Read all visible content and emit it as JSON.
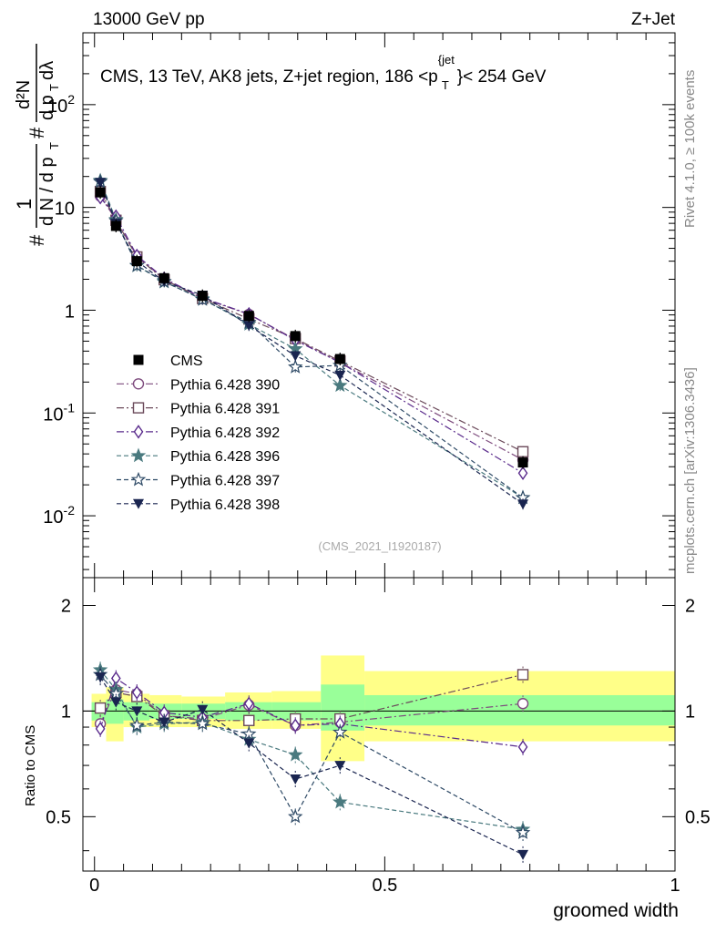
{
  "header": {
    "energy_label": "13000 GeV pp",
    "process_label": "Z+Jet"
  },
  "side_labels": {
    "rivet": "Rivet 4.1.0, ≥ 100k events",
    "mcplots": "mcplots.cern.ch [arXiv:1306.3436]"
  },
  "main_plot": {
    "title_main": "CMS, 13 TeV, AK8 jets, Z+jet region, 186 <p",
    "title_sup": "{jet",
    "title_sub": "T",
    "title_end": "}< 254 GeV",
    "watermark": "(CMS_2021_I1920187)",
    "y_ticks": [
      {
        "base": "10",
        "exp": "-2",
        "value": 0.01
      },
      {
        "base": "10",
        "exp": "-1",
        "value": 0.1
      },
      {
        "base": "1",
        "exp": "",
        "value": 1
      },
      {
        "base": "10",
        "exp": "",
        "value": 10
      },
      {
        "base": "10",
        "exp": "2",
        "value": 100
      }
    ],
    "ylabel": {
      "hash1": "#",
      "num1": "1",
      "den1": "d N / d p",
      "den1_sub": "T",
      "hash2": "#",
      "num2": "d²N",
      "den2": "d p",
      "den2_sub": "T",
      "den2_end": " dλ"
    }
  },
  "ratio_plot": {
    "ylabel": "Ratio to CMS",
    "left_ticks": [
      "0.5",
      "1",
      "2"
    ],
    "right_ticks": [
      "0.5",
      "1",
      "2"
    ],
    "xlabel": "groomed width",
    "x_ticks": [
      "0",
      "0.5",
      "1"
    ]
  },
  "legend": [
    {
      "label": "CMS",
      "color": "#000000",
      "marker": "square-filled"
    },
    {
      "label": "Pythia 6.428 390",
      "color": "#7d4a7d",
      "marker": "circle-open"
    },
    {
      "label": "Pythia 6.428 391",
      "color": "#6b4a5a",
      "marker": "square-open"
    },
    {
      "label": "Pythia 6.428 392",
      "color": "#5a2b8c",
      "marker": "diamond-open"
    },
    {
      "label": "Pythia 6.428 396",
      "color": "#4a7a7f",
      "marker": "star-filled"
    },
    {
      "label": "Pythia 6.428 397",
      "color": "#2e4a66",
      "marker": "star-open"
    },
    {
      "label": "Pythia 6.428 398",
      "color": "#1a2550",
      "marker": "triangle-down-filled"
    }
  ],
  "chart_data": {
    "type": "scatter",
    "x": [
      0.01,
      0.037,
      0.073,
      0.12,
      0.186,
      0.266,
      0.346,
      0.423,
      0.738
    ],
    "xlim": [
      -0.02,
      1.0
    ],
    "ylim_main": [
      0.0025,
      500
    ],
    "yscale_main": "log",
    "ylim_ratio": [
      0.35,
      2.4
    ],
    "yscale_ratio": "log",
    "data": {
      "name": "CMS",
      "values": [
        14.0,
        6.6,
        3.0,
        2.05,
        1.38,
        0.88,
        0.56,
        0.335,
        0.033
      ],
      "band_stat_lo": [
        0.94,
        0.92,
        0.94,
        0.95,
        0.95,
        0.94,
        0.94,
        0.88,
        0.91
      ],
      "band_stat_hi": [
        1.06,
        1.08,
        1.06,
        1.05,
        1.05,
        1.06,
        1.06,
        1.19,
        1.11
      ],
      "band_tot_lo": [
        0.9,
        0.82,
        0.9,
        0.9,
        0.9,
        0.89,
        0.89,
        0.72,
        0.82
      ],
      "band_tot_hi": [
        1.12,
        1.17,
        1.12,
        1.11,
        1.1,
        1.13,
        1.14,
        1.44,
        1.3
      ]
    },
    "series": [
      {
        "name": "Pythia 6.428 390",
        "values": [
          12.9,
          7.6,
          3.35,
          2.0,
          1.31,
          0.91,
          0.52,
          0.31,
          0.035
        ],
        "ratio": [
          0.92,
          1.15,
          1.12,
          0.97,
          0.95,
          1.04,
          0.91,
          0.93,
          1.05
        ]
      },
      {
        "name": "Pythia 6.428 391",
        "values": [
          14.3,
          7.5,
          3.3,
          1.98,
          1.3,
          0.82,
          0.53,
          0.32,
          0.042
        ],
        "ratio": [
          1.02,
          1.13,
          1.1,
          0.97,
          0.94,
          0.94,
          0.95,
          0.95,
          1.27
        ]
      },
      {
        "name": "Pythia 6.428 392",
        "values": [
          12.5,
          8.2,
          3.4,
          2.04,
          1.32,
          0.92,
          0.51,
          0.31,
          0.026
        ],
        "ratio": [
          0.89,
          1.24,
          1.13,
          0.99,
          0.96,
          1.05,
          0.91,
          0.92,
          0.79
        ]
      },
      {
        "name": "Pythia 6.428 396",
        "values": [
          18.3,
          7.6,
          2.7,
          1.88,
          1.29,
          0.73,
          0.42,
          0.185,
          0.015
        ],
        "ratio": [
          1.31,
          1.15,
          0.9,
          0.92,
          0.93,
          0.83,
          0.75,
          0.55,
          0.46
        ]
      },
      {
        "name": "Pythia 6.428 397",
        "values": [
          17.8,
          7.4,
          2.72,
          1.9,
          1.27,
          0.76,
          0.28,
          0.29,
          0.015
        ],
        "ratio": [
          1.27,
          1.12,
          0.91,
          0.93,
          0.92,
          0.86,
          0.5,
          0.87,
          0.45
        ]
      },
      {
        "name": "Pythia 6.428 398",
        "values": [
          17.5,
          7.0,
          3.0,
          1.9,
          1.4,
          0.71,
          0.36,
          0.233,
          0.013
        ],
        "ratio": [
          1.25,
          1.06,
          1.0,
          0.93,
          1.01,
          0.81,
          0.64,
          0.7,
          0.39
        ]
      }
    ]
  }
}
